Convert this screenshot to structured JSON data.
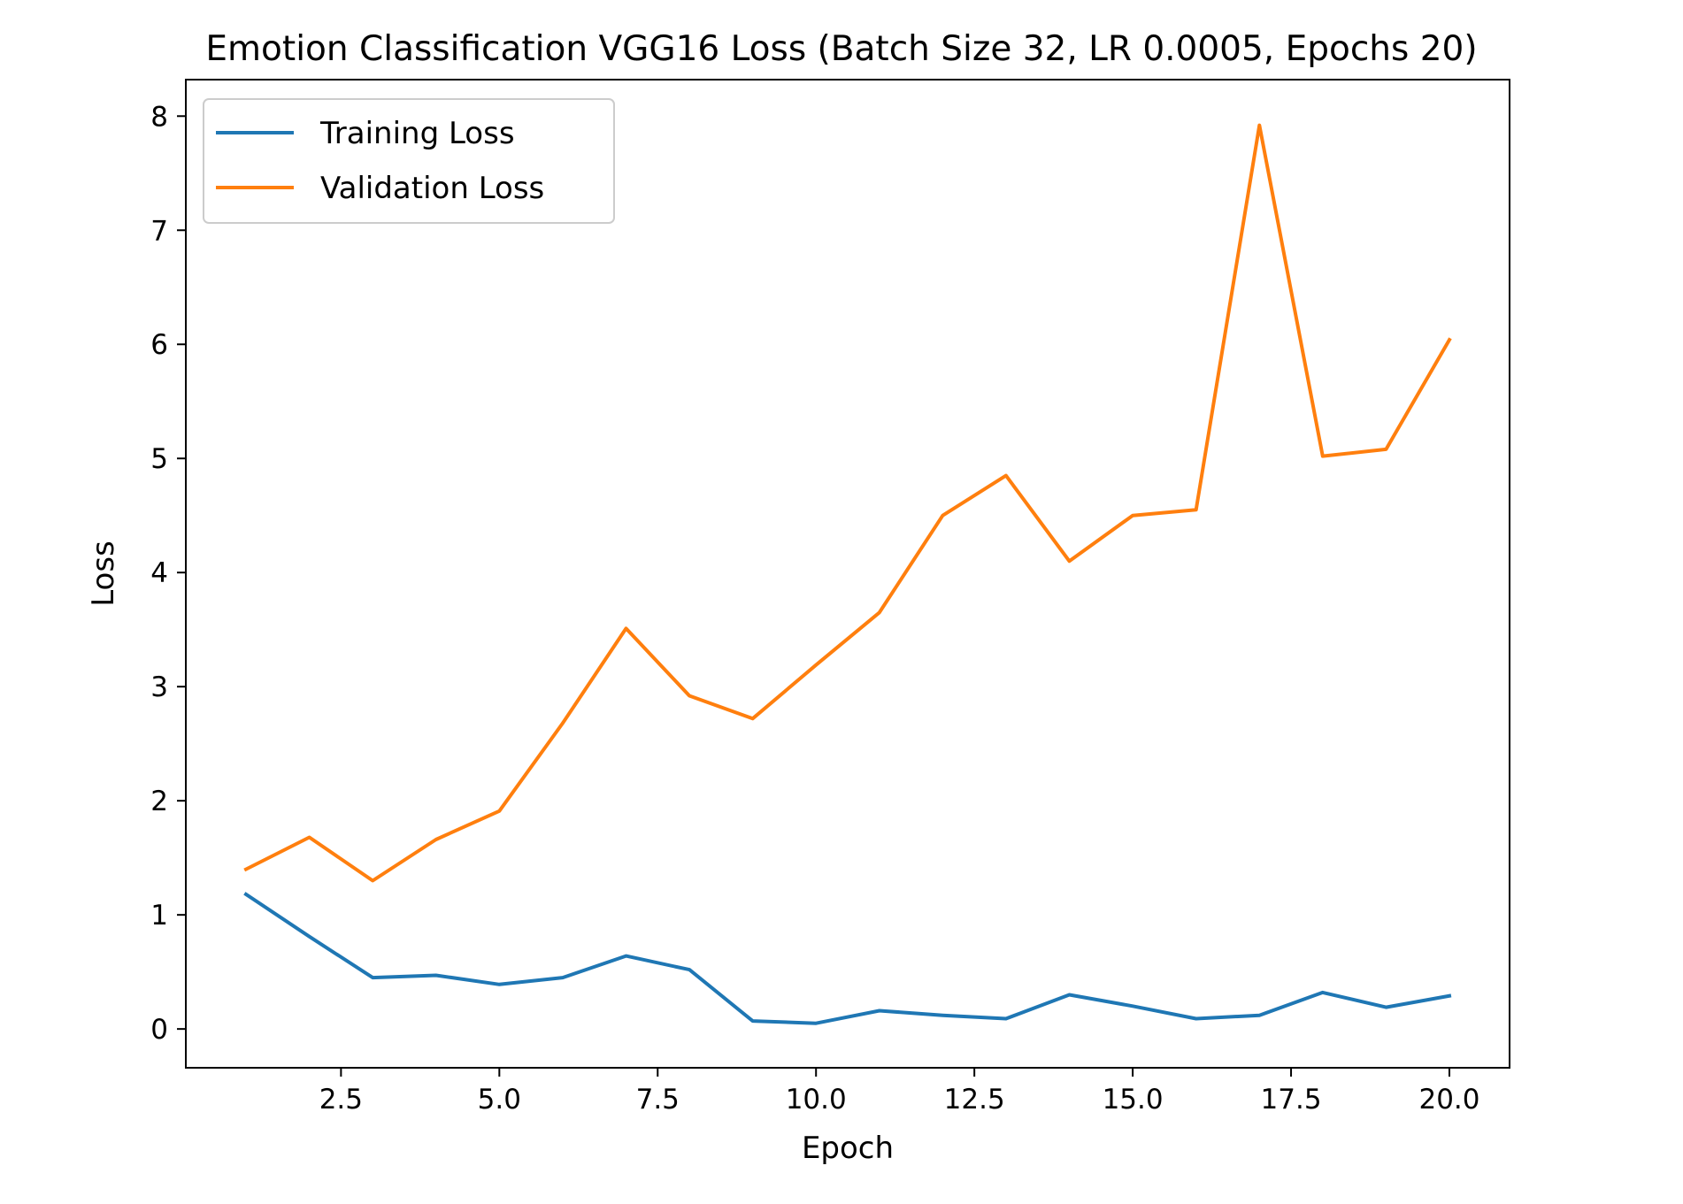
{
  "chart_data": {
    "type": "line",
    "title": "Emotion Classification VGG16 Loss (Batch Size 32, LR 0.0005, Epochs 20)",
    "xlabel": "Epoch",
    "ylabel": "Loss",
    "xlim": [
      0.05,
      20.95
    ],
    "ylim": [
      -0.34,
      8.32
    ],
    "x_ticks": [
      2.5,
      5.0,
      7.5,
      10.0,
      12.5,
      15.0,
      17.5,
      20.0
    ],
    "x_tick_labels": [
      "2.5",
      "5.0",
      "7.5",
      "10.0",
      "12.5",
      "15.0",
      "17.5",
      "20.0"
    ],
    "y_ticks": [
      0,
      1,
      2,
      3,
      4,
      5,
      6,
      7,
      8
    ],
    "y_tick_labels": [
      "0",
      "1",
      "2",
      "3",
      "4",
      "5",
      "6",
      "7",
      "8"
    ],
    "grid": false,
    "legend_position": "top-left",
    "x": [
      1,
      2,
      3,
      4,
      5,
      6,
      7,
      8,
      9,
      10,
      11,
      12,
      13,
      14,
      15,
      16,
      17,
      18,
      19,
      20
    ],
    "series": [
      {
        "name": "Training Loss",
        "color": "#1f77b4",
        "values": [
          1.18,
          0.81,
          0.45,
          0.47,
          0.39,
          0.45,
          0.64,
          0.52,
          0.07,
          0.05,
          0.16,
          0.12,
          0.09,
          0.3,
          0.2,
          0.09,
          0.12,
          0.32,
          0.19,
          0.29
        ]
      },
      {
        "name": "Validation Loss",
        "color": "#ff7f0e",
        "values": [
          1.4,
          1.68,
          1.3,
          1.66,
          1.91,
          2.68,
          3.51,
          2.92,
          2.72,
          3.19,
          3.65,
          4.5,
          4.85,
          4.1,
          4.5,
          4.55,
          7.92,
          5.02,
          5.08,
          6.04
        ]
      }
    ]
  }
}
